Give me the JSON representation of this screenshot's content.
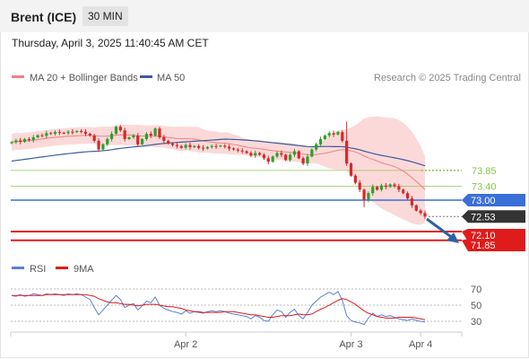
{
  "header": {
    "instrument": "Brent (ICE)",
    "timeframe": "30 MIN",
    "datetime": "Thursday, April 3, 2025 11:40:45 AM CET"
  },
  "legend": {
    "ma20": "MA 20 + Bollinger Bands",
    "ma50": "MA 50",
    "copyright": "Research © 2025 Trading Central",
    "rsi": "RSI",
    "rsi_ma": "9MA"
  },
  "colors": {
    "candle_up": "#2ca02c",
    "candle_down": "#d62728",
    "bollinger_fill": "#fbd0d0",
    "ma20": "#f08080",
    "ma50": "#3a5ba0",
    "pivot": "#3b6fd8",
    "resistance": "#8bc34a",
    "support": "#e01b1b",
    "last_price": "#333333",
    "arrow": "#2f5fa8",
    "rsi": "#5a80d8",
    "rsi_ma": "#e01b1b"
  },
  "chart_data": {
    "type": "candlestick",
    "price_levels": [
      {
        "name": "resistance",
        "value": 73.85,
        "label": "73.85"
      },
      {
        "name": "resistance",
        "value": 73.4,
        "label": "73.40"
      },
      {
        "name": "pivot",
        "value": 73.0,
        "label": "73.00"
      },
      {
        "name": "last",
        "value": 72.53,
        "label": "72.53"
      },
      {
        "name": "support",
        "value": 72.1,
        "label": "72.10"
      },
      {
        "name": "support",
        "value": 71.85,
        "label": "71.85"
      }
    ],
    "x_labels": [
      {
        "label": "Apr 2",
        "index": 40
      },
      {
        "label": "Apr 3",
        "index": 78
      },
      {
        "label": "Apr 4",
        "index": 94
      }
    ],
    "rsi_ticks": [
      70,
      50,
      30
    ],
    "close": [
      74.66,
      74.71,
      74.67,
      74.75,
      74.72,
      74.8,
      74.86,
      74.84,
      74.92,
      74.9,
      74.95,
      74.93,
      74.92,
      74.96,
      74.95,
      74.98,
      74.96,
      74.9,
      74.85,
      74.7,
      74.45,
      74.6,
      74.75,
      74.9,
      75.1,
      75.0,
      74.75,
      74.8,
      74.85,
      74.6,
      74.75,
      74.9,
      74.85,
      75.05,
      74.8,
      74.7,
      74.62,
      74.58,
      74.55,
      74.5,
      74.58,
      74.52,
      74.55,
      74.5,
      74.48,
      74.52,
      74.55,
      74.54,
      74.56,
      74.53,
      74.48,
      74.45,
      74.42,
      74.4,
      74.35,
      74.28,
      74.35,
      74.3,
      74.2,
      74.1,
      74.25,
      74.35,
      74.3,
      74.15,
      74.3,
      74.4,
      74.2,
      74.05,
      74.25,
      74.45,
      74.6,
      74.75,
      74.85,
      74.92,
      74.88,
      74.95,
      74.7,
      74.05,
      73.7,
      73.5,
      73.3,
      73.0,
      73.2,
      73.38,
      73.3,
      73.42,
      73.38,
      73.45,
      73.4,
      73.3,
      73.2,
      73.05,
      72.85,
      72.7,
      72.63,
      72.53
    ],
    "rsi": [
      62,
      61,
      63,
      61,
      62,
      64,
      63,
      62,
      64,
      63,
      64,
      63,
      62,
      64,
      63,
      64,
      63,
      60,
      57,
      47,
      38,
      44,
      50,
      56,
      62,
      57,
      47,
      50,
      52,
      44,
      49,
      55,
      53,
      60,
      50,
      46,
      44,
      42,
      41,
      39,
      43,
      40,
      42,
      41,
      40,
      42,
      43,
      42,
      43,
      42,
      40,
      39,
      38,
      37,
      36,
      33,
      37,
      35,
      31,
      30,
      38,
      44,
      42,
      35,
      41,
      45,
      37,
      33,
      41,
      50,
      55,
      60,
      63,
      66,
      63,
      67,
      56,
      37,
      31,
      29,
      28,
      26,
      34,
      40,
      36,
      38,
      36,
      37,
      35,
      33,
      32,
      31,
      33,
      31,
      30,
      29
    ],
    "rsi_ma": [
      62,
      62,
      62,
      62,
      62,
      62,
      62,
      62,
      63,
      63,
      63,
      63,
      63,
      63,
      63,
      63,
      63,
      63,
      62,
      61,
      58,
      56,
      54,
      53,
      53,
      52,
      51,
      51,
      50,
      49,
      50,
      51,
      51,
      51,
      50,
      49,
      48,
      48,
      47,
      46,
      44,
      43,
      42,
      42,
      41,
      41,
      41,
      41,
      41,
      42,
      42,
      42,
      41,
      40,
      39,
      38,
      38,
      37,
      36,
      35,
      35,
      36,
      37,
      37,
      37,
      38,
      39,
      38,
      38,
      39,
      42,
      45,
      47,
      50,
      53,
      56,
      58,
      57,
      54,
      51,
      47,
      43,
      40,
      38,
      36,
      35,
      34,
      34,
      34,
      35,
      35,
      35,
      35,
      34,
      33,
      32
    ]
  }
}
